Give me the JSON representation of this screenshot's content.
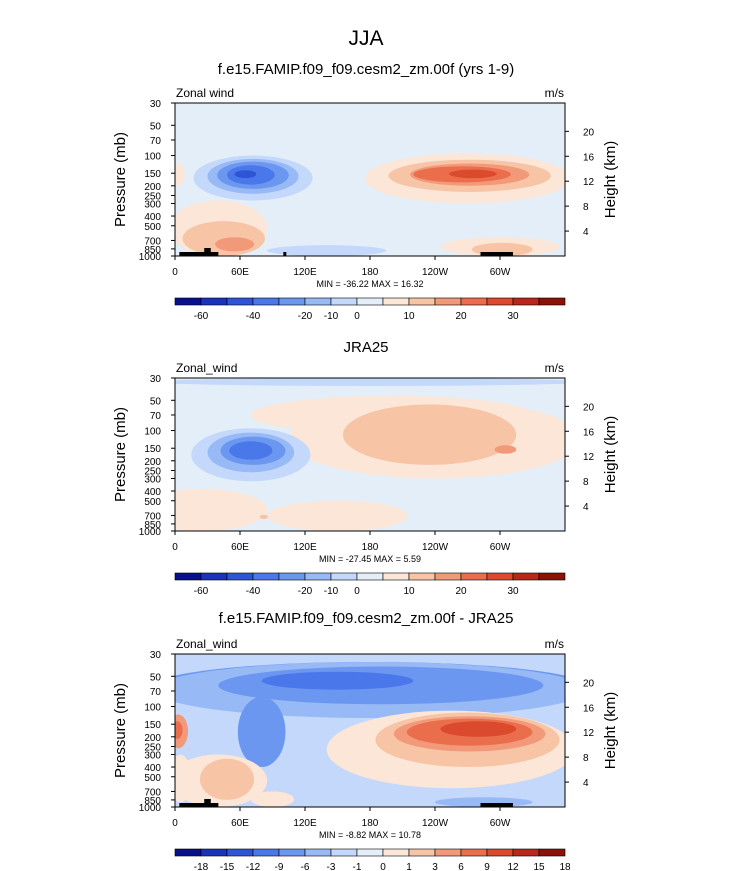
{
  "figure": {
    "title": "JJA",
    "colors": {
      "ramp_main": [
        "#08108c",
        "#1a33b8",
        "#2d55d6",
        "#4a78ea",
        "#6c97f0",
        "#97b9f6",
        "#c3d8fa",
        "#e3eef9",
        "#fbe6d8",
        "#f8c4a6",
        "#f2997a",
        "#ea6d4c",
        "#dc4a2d",
        "#b8281a",
        "#8a1206"
      ],
      "ramp_diff": [
        "#08108c",
        "#1a33b8",
        "#2d55d6",
        "#4a78ea",
        "#6c97f0",
        "#97b9f6",
        "#c3d8fa",
        "#e3eef9",
        "#fbe6d8",
        "#f8c4a6",
        "#f2997a",
        "#ea6d4c",
        "#dc4a2d",
        "#b8281a",
        "#8a1206"
      ]
    }
  },
  "panels": [
    {
      "title": "f.e15.FAMIP.f09_f09.cesm2_zm.00f (yrs 1-9)",
      "left_label": "Zonal wind",
      "right_label": "m/s",
      "ylabel": "Pressure (mb)",
      "ylabel_right": "Height (km)",
      "stats": "MIN = -36.22  MAX =  16.32",
      "colorbar_labels": [
        "-60",
        "-40",
        "-20",
        "-10",
        "0",
        "10",
        "20",
        "30"
      ]
    },
    {
      "title": "JRA25",
      "left_label": "Zonal_wind",
      "right_label": "m/s",
      "ylabel": "Pressure (mb)",
      "ylabel_right": "Height (km)",
      "stats": "MIN = -27.45  MAX =  5.59",
      "colorbar_labels": [
        "-60",
        "-40",
        "-20",
        "-10",
        "0",
        "10",
        "20",
        "30"
      ]
    },
    {
      "title": "f.e15.FAMIP.f09_f09.cesm2_zm.00f - JRA25",
      "left_label": "Zonal_wind",
      "right_label": "m/s",
      "ylabel": "Pressure (mb)",
      "ylabel_right": "Height (km)",
      "stats": "MIN = -8.82  MAX = 10.78",
      "colorbar_labels": [
        "-18",
        "-15",
        "-12",
        "-9",
        "-6",
        "-3",
        "-1",
        "0",
        "1",
        "3",
        "6",
        "9",
        "12",
        "15",
        "18"
      ]
    }
  ],
  "chart_data": [
    {
      "type": "heatmap",
      "title": "f.e15.FAMIP.f09_f09.cesm2_zm.00f (yrs 1-9)",
      "variable": "Zonal wind",
      "units": "m/s",
      "x_ticks": [
        "0",
        "60E",
        "120E",
        "180",
        "120W",
        "60W"
      ],
      "x_tick_lon": [
        0,
        60,
        120,
        180,
        240,
        300
      ],
      "xlim": [
        0,
        360
      ],
      "ylabel": "Pressure (mb)",
      "y_ticks": [
        "30",
        "50",
        "70",
        "100",
        "150",
        "200",
        "250",
        "300",
        "400",
        "500",
        "700",
        "850",
        "1000"
      ],
      "y_tick_p": [
        30,
        50,
        70,
        100,
        150,
        200,
        250,
        300,
        400,
        500,
        700,
        850,
        1000
      ],
      "ylim": [
        1000,
        30
      ],
      "ylabel_right": "Height (km)",
      "y2_ticks": [
        "4",
        "8",
        "12",
        "16",
        "20"
      ],
      "y2_tick_km": [
        4,
        8,
        12,
        16,
        20
      ],
      "min": -36.22,
      "max": 16.32,
      "levels_labeled": [
        -60,
        -40,
        -20,
        -10,
        0,
        10,
        20,
        30
      ],
      "features": [
        {
          "lon": 75,
          "p": 150,
          "value": -36,
          "desc": "easterly jet core"
        },
        {
          "lon": 250,
          "p": 150,
          "value": 16,
          "desc": "westerly maximum"
        },
        {
          "lon": 45,
          "p": 800,
          "value": 10,
          "desc": "lower-level westerlies"
        }
      ]
    },
    {
      "type": "heatmap",
      "title": "JRA25",
      "variable": "Zonal_wind",
      "units": "m/s",
      "x_ticks": [
        "0",
        "60E",
        "120E",
        "180",
        "120W",
        "60W"
      ],
      "x_tick_lon": [
        0,
        60,
        120,
        180,
        240,
        300
      ],
      "xlim": [
        0,
        360
      ],
      "ylabel": "Pressure (mb)",
      "y_ticks": [
        "30",
        "50",
        "70",
        "100",
        "150",
        "200",
        "250",
        "300",
        "400",
        "500",
        "700",
        "850",
        "1000"
      ],
      "y_tick_p": [
        30,
        50,
        70,
        100,
        150,
        200,
        250,
        300,
        400,
        500,
        700,
        850,
        1000
      ],
      "ylim": [
        1000,
        30
      ],
      "ylabel_right": "Height (km)",
      "y2_ticks": [
        "4",
        "8",
        "12",
        "16",
        "20"
      ],
      "y2_tick_km": [
        4,
        8,
        12,
        16,
        20
      ],
      "min": -27.45,
      "max": 5.59,
      "levels_labeled": [
        -60,
        -40,
        -20,
        -10,
        0,
        10,
        20,
        30
      ],
      "features": [
        {
          "lon": 75,
          "p": 150,
          "value": -27,
          "desc": "easterly jet core"
        },
        {
          "lon": 225,
          "p": 120,
          "value": 5,
          "desc": "weak westerlies"
        }
      ]
    },
    {
      "type": "heatmap",
      "title": "f.e15.FAMIP.f09_f09.cesm2_zm.00f - JRA25",
      "variable": "Zonal_wind",
      "units": "m/s",
      "x_ticks": [
        "0",
        "60E",
        "120E",
        "180",
        "120W",
        "60W"
      ],
      "x_tick_lon": [
        0,
        60,
        120,
        180,
        240,
        300
      ],
      "xlim": [
        0,
        360
      ],
      "ylabel": "Pressure (mb)",
      "y_ticks": [
        "30",
        "50",
        "70",
        "100",
        "150",
        "200",
        "250",
        "300",
        "400",
        "500",
        "700",
        "850",
        "1000"
      ],
      "y_tick_p": [
        30,
        50,
        70,
        100,
        150,
        200,
        250,
        300,
        400,
        500,
        700,
        850,
        1000
      ],
      "ylim": [
        1000,
        30
      ],
      "ylabel_right": "Height (km)",
      "y2_ticks": [
        "4",
        "8",
        "12",
        "16",
        "20"
      ],
      "y2_tick_km": [
        4,
        8,
        12,
        16,
        20
      ],
      "min": -8.82,
      "max": 10.78,
      "levels_labeled": [
        -18,
        -15,
        -12,
        -9,
        -6,
        -3,
        -1,
        0,
        1,
        3,
        6,
        9,
        12,
        15,
        18
      ],
      "features": [
        {
          "lon": 150,
          "p": 60,
          "value": -6,
          "desc": "upper easterly bias band"
        },
        {
          "lon": 270,
          "p": 180,
          "value": 10,
          "desc": "westerly bias"
        },
        {
          "lon": 3,
          "p": 170,
          "value": 9,
          "desc": "westerly bias near 0"
        }
      ]
    }
  ]
}
